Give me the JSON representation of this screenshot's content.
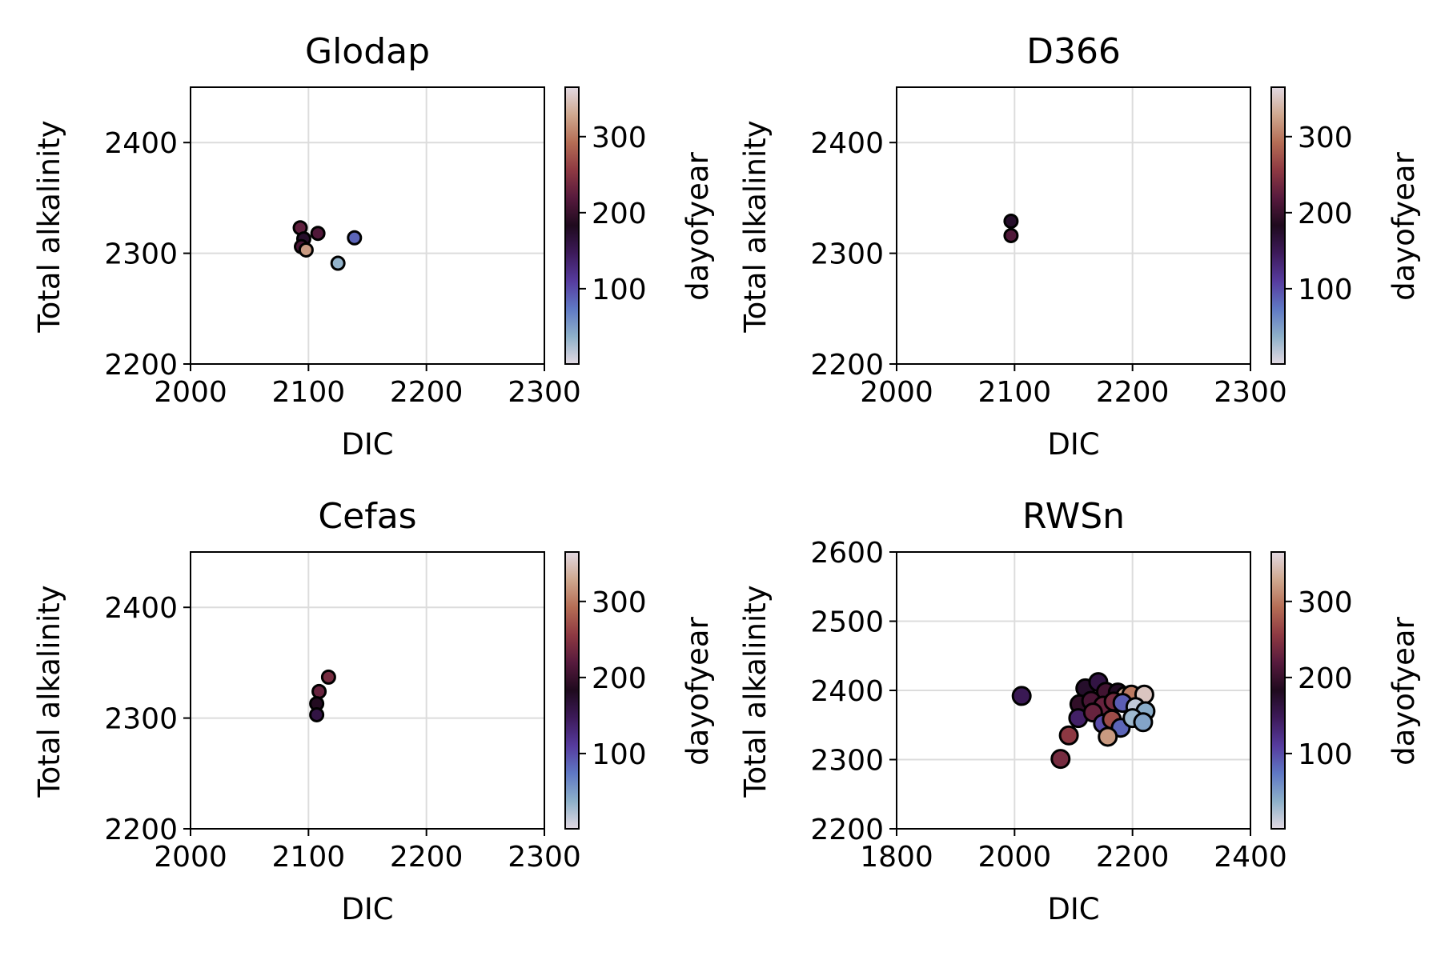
{
  "colormap": {
    "name": "twilight_shifted",
    "stops": [
      "#e2d9e2",
      "#8db0c9",
      "#5f78c4",
      "#563b9e",
      "#3d1a5a",
      "#1f0a1e",
      "#571a3d",
      "#8e3942",
      "#b56d55",
      "#cfa88f",
      "#e2d9e2"
    ]
  },
  "colorbar": {
    "label": "dayofyear",
    "ticks": [
      100,
      200,
      300
    ],
    "range": [
      1,
      365
    ]
  },
  "chart_data": [
    {
      "type": "scatter",
      "title": "Glodap",
      "xlabel": "DIC",
      "ylabel": "Total alkalinity",
      "xlim": [
        2000,
        2300
      ],
      "ylim": [
        2200,
        2450
      ],
      "xticks": [
        2000,
        2100,
        2200,
        2300
      ],
      "yticks": [
        2200,
        2300,
        2400
      ],
      "grid": true,
      "marker_size": "small",
      "points": [
        {
          "x": 2093,
          "y": 2323,
          "doy": 225
        },
        {
          "x": 2108,
          "y": 2318,
          "doy": 215
        },
        {
          "x": 2096,
          "y": 2313,
          "doy": 175
        },
        {
          "x": 2094,
          "y": 2306,
          "doy": 210
        },
        {
          "x": 2098,
          "y": 2303,
          "doy": 320
        },
        {
          "x": 2139,
          "y": 2314,
          "doy": 85
        },
        {
          "x": 2125,
          "y": 2291,
          "doy": 35
        }
      ]
    },
    {
      "type": "scatter",
      "title": "D366",
      "xlabel": "DIC",
      "ylabel": "Total alkalinity",
      "xlim": [
        2000,
        2300
      ],
      "ylim": [
        2200,
        2450
      ],
      "xticks": [
        2000,
        2100,
        2200,
        2300
      ],
      "yticks": [
        2200,
        2300,
        2400
      ],
      "grid": true,
      "marker_size": "small",
      "points": [
        {
          "x": 2097,
          "y": 2329,
          "doy": 175
        },
        {
          "x": 2097,
          "y": 2316,
          "doy": 215
        }
      ]
    },
    {
      "type": "scatter",
      "title": "Cefas",
      "xlabel": "DIC",
      "ylabel": "Total alkalinity",
      "xlim": [
        2000,
        2300
      ],
      "ylim": [
        2200,
        2450
      ],
      "xticks": [
        2000,
        2100,
        2200,
        2300
      ],
      "yticks": [
        2200,
        2300,
        2400
      ],
      "grid": true,
      "marker_size": "small",
      "points": [
        {
          "x": 2117,
          "y": 2337,
          "doy": 240
        },
        {
          "x": 2109,
          "y": 2324,
          "doy": 230
        },
        {
          "x": 2107,
          "y": 2313,
          "doy": 185
        },
        {
          "x": 2107,
          "y": 2303,
          "doy": 160
        }
      ]
    },
    {
      "type": "scatter",
      "title": "RWSn",
      "xlabel": "DIC",
      "ylabel": "Total alkalinity",
      "xlim": [
        1800,
        2400
      ],
      "ylim": [
        2200,
        2600
      ],
      "xticks": [
        1800,
        2000,
        2200,
        2400
      ],
      "yticks": [
        2200,
        2300,
        2400,
        2500,
        2600
      ],
      "grid": true,
      "marker_size": "large",
      "points": [
        {
          "x": 2012,
          "y": 2392,
          "doy": 150
        },
        {
          "x": 2120,
          "y": 2403,
          "doy": 175
        },
        {
          "x": 2142,
          "y": 2412,
          "doy": 160
        },
        {
          "x": 2155,
          "y": 2398,
          "doy": 205
        },
        {
          "x": 2175,
          "y": 2397,
          "doy": 180
        },
        {
          "x": 2188,
          "y": 2392,
          "doy": 330
        },
        {
          "x": 2198,
          "y": 2394,
          "doy": 300
        },
        {
          "x": 2220,
          "y": 2394,
          "doy": 350
        },
        {
          "x": 2110,
          "y": 2380,
          "doy": 195
        },
        {
          "x": 2130,
          "y": 2385,
          "doy": 210
        },
        {
          "x": 2150,
          "y": 2378,
          "doy": 230
        },
        {
          "x": 2168,
          "y": 2384,
          "doy": 240
        },
        {
          "x": 2183,
          "y": 2382,
          "doy": 90
        },
        {
          "x": 2205,
          "y": 2376,
          "doy": 15
        },
        {
          "x": 2222,
          "y": 2370,
          "doy": 40
        },
        {
          "x": 2108,
          "y": 2360,
          "doy": 140
        },
        {
          "x": 2133,
          "y": 2368,
          "doy": 230
        },
        {
          "x": 2150,
          "y": 2352,
          "doy": 100
        },
        {
          "x": 2165,
          "y": 2358,
          "doy": 270
        },
        {
          "x": 2180,
          "y": 2346,
          "doy": 85
        },
        {
          "x": 2200,
          "y": 2360,
          "doy": 30
        },
        {
          "x": 2218,
          "y": 2354,
          "doy": 45
        },
        {
          "x": 2092,
          "y": 2335,
          "doy": 255
        },
        {
          "x": 2158,
          "y": 2333,
          "doy": 320
        },
        {
          "x": 2078,
          "y": 2301,
          "doy": 240
        }
      ]
    }
  ]
}
